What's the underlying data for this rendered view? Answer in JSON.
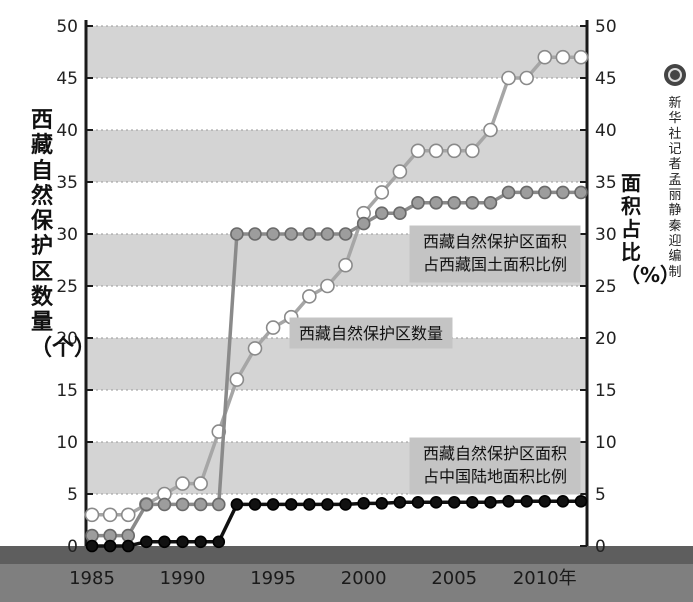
{
  "chart_data": {
    "type": "line",
    "x": [
      1985,
      1986,
      1987,
      1988,
      1989,
      1990,
      1991,
      1992,
      1993,
      1994,
      1995,
      1996,
      1997,
      1998,
      1999,
      2000,
      2001,
      2002,
      2003,
      2004,
      2005,
      2006,
      2007,
      2008,
      2009,
      2010,
      2011,
      2012
    ],
    "x_ticks": [
      {
        "value": 1985,
        "label": "1985"
      },
      {
        "value": 1990,
        "label": "1990"
      },
      {
        "value": 1995,
        "label": "1995"
      },
      {
        "value": 2000,
        "label": "2000"
      },
      {
        "value": 2005,
        "label": "2005"
      },
      {
        "value": 2010,
        "label": "2010年"
      }
    ],
    "y_left": {
      "label": "西藏自然保护区数量（个）",
      "ylim": [
        0,
        50
      ],
      "ticks": [
        "0",
        "5",
        "10",
        "15",
        "20",
        "25",
        "30",
        "35",
        "40",
        "45",
        "50"
      ]
    },
    "y_right": {
      "label": "面积占比（%）",
      "ylim": [
        0,
        50
      ],
      "ticks": [
        "0",
        "5",
        "10",
        "15",
        "20",
        "25",
        "30",
        "35",
        "40",
        "45",
        "50"
      ]
    },
    "grid": "horizontal bands",
    "series": [
      {
        "name": "西藏自然保护区数量",
        "axis": "left",
        "values": [
          1,
          1,
          1,
          4,
          4,
          4,
          4,
          4,
          30,
          30,
          30,
          30,
          30,
          30,
          30,
          31,
          32,
          32,
          33,
          33,
          33,
          33,
          33,
          34,
          34,
          34,
          34,
          34
        ],
        "style": "gray-filled"
      },
      {
        "name": "西藏自然保护区面积占西藏国土面积比例",
        "axis": "right",
        "values": [
          3,
          3,
          3,
          4,
          5,
          6,
          6,
          11,
          16,
          19,
          21,
          22,
          24,
          25,
          27,
          32,
          34,
          36,
          38,
          38,
          38,
          38,
          40,
          45,
          45,
          47,
          47,
          47
        ],
        "style": "white-open"
      },
      {
        "name": "西藏自然保护区面积占中国陆地面积比例",
        "axis": "right",
        "values": [
          0,
          0,
          0,
          0.4,
          0.4,
          0.4,
          0.4,
          0.4,
          4,
          4,
          4,
          4,
          4,
          4,
          4,
          4.1,
          4.1,
          4.2,
          4.2,
          4.2,
          4.2,
          4.2,
          4.2,
          4.3,
          4.3,
          4.3,
          4.3,
          4.3
        ],
        "style": "black-filled"
      }
    ],
    "annotations": [
      {
        "series": 0,
        "text": "西藏自然保护区数量"
      },
      {
        "series": 1,
        "text": "西藏自然保护区面积\n占西藏国土面积比例"
      },
      {
        "series": 2,
        "text": "西藏自然保护区面积\n占中国陆地面积比例"
      }
    ]
  },
  "left_axis_label": "西藏自然保护区数量（个）",
  "right_axis_label": "面积占比（%）",
  "credit": "新华社记者 孟丽静 秦迎 编制"
}
